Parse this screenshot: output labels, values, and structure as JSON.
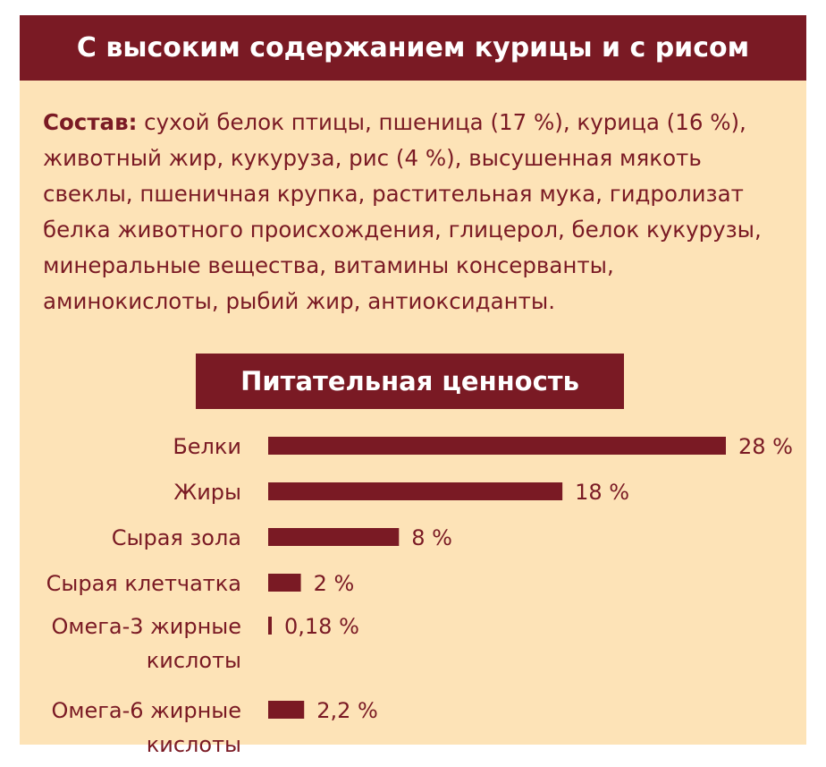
{
  "header": {
    "title": "С высоким содержанием курицы и с рисом"
  },
  "composition": {
    "label": "Состав:",
    "text": " сухой белок птицы, пшеница (17 %), курица (16 %), животный жир, кукуруза, рис (4 %), высушенная мякоть свеклы, пшеничная крупка, растительная мука, гидролизат белка животного происхождения, глицерол, белок кукурузы, минеральные вещества, витамины консерванты, аминокислоты, рыбий жир, антиоксиданты."
  },
  "colors": {
    "background": "#fde3b7",
    "accent": "#7a1a24",
    "banner_text": "#ffffff"
  },
  "chart_data": {
    "type": "bar",
    "orientation": "horizontal",
    "title": "Питательная ценность",
    "categories": [
      [
        "Белки"
      ],
      [
        "Жиры"
      ],
      [
        "Сырая зола"
      ],
      [
        "Сырая клетчатка"
      ],
      [
        "Омега-3 жирные",
        "кислоты"
      ],
      [
        "Омега-6 жирные",
        "кислоты"
      ]
    ],
    "values": [
      28,
      18,
      8,
      2,
      0.18,
      2.2
    ],
    "value_labels": [
      "28 %",
      "18 %",
      "8 %",
      "2 %",
      "0,18 %",
      "2,2 %"
    ],
    "unit": "%",
    "xlim": [
      0,
      28
    ],
    "grid": false,
    "legend": "none"
  }
}
